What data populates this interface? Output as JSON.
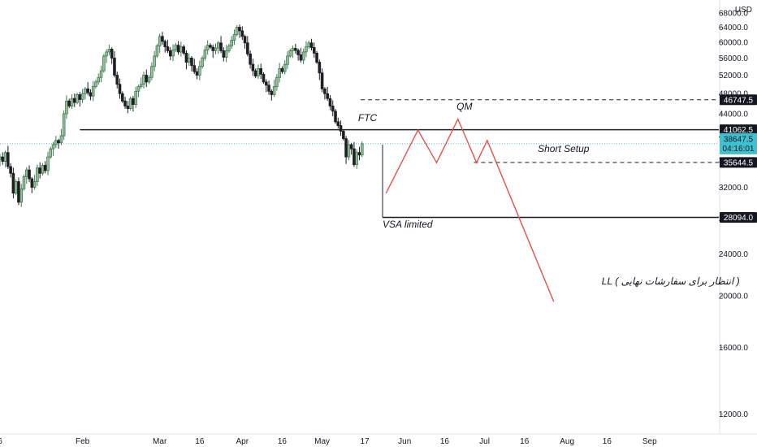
{
  "chart_data": {
    "type": "candlestick",
    "currency": "USD",
    "y_scale": "log",
    "ylim": [
      11000,
      72000
    ],
    "x_axis": {
      "range_days": [
        -26,
        244
      ],
      "ticks": [
        {
          "day": -26,
          "label": "6"
        },
        {
          "day": 5,
          "label": "Feb"
        },
        {
          "day": 34,
          "label": "Mar"
        },
        {
          "day": 49,
          "label": "16"
        },
        {
          "day": 65,
          "label": "Apr"
        },
        {
          "day": 80,
          "label": "16"
        },
        {
          "day": 95,
          "label": "May"
        },
        {
          "day": 111,
          "label": "17"
        },
        {
          "day": 126,
          "label": "Jun"
        },
        {
          "day": 141,
          "label": "16"
        },
        {
          "day": 156,
          "label": "Jul"
        },
        {
          "day": 171,
          "label": "16"
        },
        {
          "day": 187,
          "label": "Aug"
        },
        {
          "day": 202,
          "label": "16"
        },
        {
          "day": 218,
          "label": "Sep"
        }
      ]
    },
    "y_ticks": [
      12000,
      16000,
      20000,
      24000,
      28000,
      32000,
      36000,
      40000,
      44000,
      48000,
      52000,
      56000,
      60000,
      64000,
      68000
    ],
    "y_tick_labels": [
      "12000.0",
      "16000.0",
      "20000.0",
      "24000.0",
      "28000.0",
      "32000.0",
      "36000.0",
      "40000.0",
      "44000.0",
      "48000.0",
      "52000.0",
      "56000.0",
      "60000.0",
      "64000.0",
      "68000.0"
    ],
    "up_color": "#3e7d4f",
    "down_color": "#1e1e24",
    "closes": [
      36500,
      35800,
      37200,
      35000,
      34000,
      31200,
      32800,
      30000,
      31800,
      33500,
      34500,
      33200,
      32000,
      32800,
      34800,
      34000,
      35200,
      34400,
      36500,
      37800,
      38500,
      39200,
      38800,
      40000,
      44000,
      46500,
      45500,
      47000,
      46200,
      47800,
      46800,
      48000,
      49000,
      48200,
      47500,
      49500,
      50500,
      51500,
      53000,
      56500,
      57500,
      58200,
      56000,
      52000,
      50000,
      48000,
      46500,
      45500,
      45000,
      47000,
      45800,
      48500,
      49500,
      50000,
      52000,
      50500,
      51500,
      54000,
      56500,
      59000,
      61500,
      60200,
      58800,
      57800,
      56500,
      58000,
      59200,
      57500,
      58800,
      57200,
      55000,
      56000,
      54200,
      52800,
      52000,
      54000,
      56000,
      58000,
      59200,
      58700,
      57800,
      58500,
      59800,
      57800,
      56200,
      57800,
      59000,
      60500,
      62000,
      64000,
      63000,
      61500,
      59800,
      57000,
      54500,
      53000,
      51800,
      53500,
      52200,
      50500,
      49800,
      48500,
      47800,
      49500,
      51500,
      53500,
      52800,
      54500,
      56500,
      57800,
      58400,
      57900,
      56800,
      55500,
      57500,
      58800,
      59800,
      58600,
      57200,
      55000,
      52500,
      49000,
      48000,
      47000,
      45500,
      44500,
      42500,
      41800,
      40800,
      39500,
      36500,
      38500,
      37800,
      35300,
      37200,
      36800,
      38647.5
    ],
    "levels": [
      {
        "value": 46747.5,
        "label": "46747.5",
        "style": "dashed"
      },
      {
        "value": 41062.5,
        "label": "41062.5",
        "style": "solid"
      },
      {
        "value": 35644.5,
        "label": "35644.5",
        "style": "dashed"
      },
      {
        "value": 28094.0,
        "label": "28094.0",
        "style": "solid"
      }
    ],
    "current_price": {
      "value": 38647.5,
      "label": "38647.5",
      "countdown": "04:16:01",
      "color": "#40c0cf"
    },
    "forecast_path": [
      {
        "day": 119,
        "price": 31200
      },
      {
        "day": 131,
        "price": 41000
      },
      {
        "day": 138,
        "price": 35600
      },
      {
        "day": 146,
        "price": 43000
      },
      {
        "day": 153,
        "price": 35600
      },
      {
        "day": 157,
        "price": 39200
      },
      {
        "day": 182,
        "price": 19500
      }
    ],
    "forecast_color": "#e6504a",
    "annotations": [
      {
        "text": "FTC",
        "day": 108.5,
        "price": 42600
      },
      {
        "text": "QM",
        "day": 145.5,
        "price": 44800
      },
      {
        "text": "Short Setup",
        "day": 176,
        "price": 37300
      },
      {
        "text": "VSA limited",
        "day": 117.7,
        "price": 26900
      },
      {
        "text": "LL ( انتظار برای سفارشات نهایی )",
        "day": 200,
        "price": 21000
      }
    ],
    "vsa_box": {
      "day_start": 117.7,
      "day_end": 244,
      "price_top": 38500,
      "price_bottom": 28094
    }
  }
}
